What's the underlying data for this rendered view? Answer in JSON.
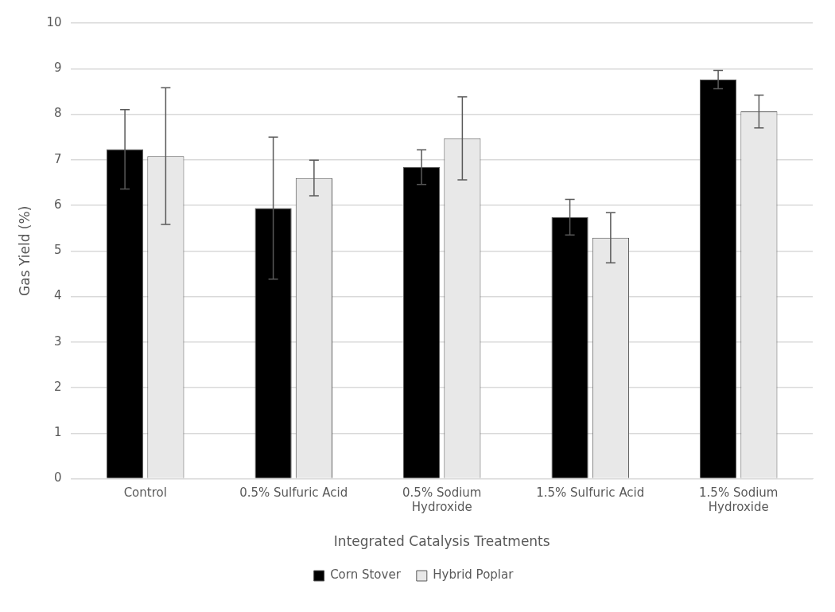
{
  "chart_data": {
    "type": "bar",
    "xlabel": "Integrated Catalysis Treatments",
    "ylabel": "Gas Yield (%)",
    "categories": [
      "Control",
      "0.5% Sulfuric Acid",
      "0.5% Sodium Hydroxide",
      "1.5% Sulfuric Acid",
      "1.5% Sodium Hydroxide"
    ],
    "series": [
      {
        "name": "Corn Stover",
        "color": "#000000",
        "values": [
          7.23,
          5.94,
          6.84,
          5.74,
          8.76
        ],
        "errors": [
          0.87,
          1.56,
          0.38,
          0.39,
          0.2
        ]
      },
      {
        "name": "Hybrid Poplar",
        "color": "#e8e8e8",
        "values": [
          7.08,
          6.6,
          7.47,
          5.29,
          8.06
        ],
        "errors": [
          1.5,
          0.39,
          0.91,
          0.55,
          0.36
        ]
      }
    ],
    "ylim": [
      0,
      10
    ],
    "yticks": [
      0,
      1,
      2,
      3,
      4,
      5,
      6,
      7,
      8,
      9,
      10
    ],
    "grid": "y",
    "legend": "bottom"
  }
}
